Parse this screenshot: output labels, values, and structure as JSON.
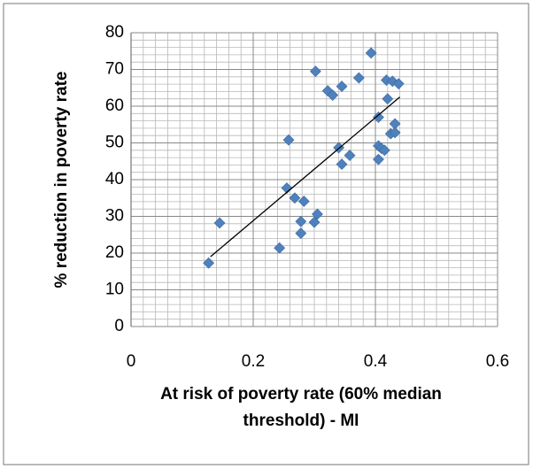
{
  "chart_data": {
    "type": "scatter",
    "xlabel": [
      "At risk of poverty rate (60% median",
      "threshold) - MI"
    ],
    "ylabel": "% reduction in poverty rate",
    "color": "#4f81bd",
    "x": [
      0.127,
      0.145,
      0.243,
      0.255,
      0.258,
      0.268,
      0.278,
      0.278,
      0.283,
      0.3,
      0.302,
      0.305,
      0.322,
      0.33,
      0.34,
      0.345,
      0.345,
      0.358,
      0.373,
      0.393,
      0.405,
      0.405,
      0.405,
      0.41,
      0.415,
      0.418,
      0.42,
      0.425,
      0.428,
      0.432,
      0.432,
      0.438
    ],
    "values": [
      17.3,
      28.2,
      21.4,
      37.7,
      50.8,
      35,
      28.6,
      25.4,
      34.1,
      28.4,
      69.5,
      30.6,
      64.2,
      63,
      48.7,
      44.2,
      65.4,
      46.6,
      67.7,
      74.5,
      57,
      49.2,
      45.5,
      48.5,
      48,
      67.1,
      62,
      52.5,
      66.8,
      55.2,
      52.8,
      66.1
    ],
    "trendline": {
      "x": [
        0.13,
        0.44
      ],
      "y": [
        19,
        62.5
      ],
      "color": "#000000"
    },
    "xlim": [
      0,
      0.6
    ],
    "ylim": [
      0,
      80
    ],
    "xticks": [
      0,
      0.2,
      0.4,
      0.6
    ],
    "yticks": [
      0,
      10,
      20,
      30,
      40,
      50,
      60,
      70,
      80
    ],
    "xminorticks": [
      0.02,
      0.04,
      0.06,
      0.08,
      0.1,
      0.12,
      0.14,
      0.16,
      0.18,
      0.22,
      0.24,
      0.26,
      0.28,
      0.3,
      0.32,
      0.34,
      0.36,
      0.38,
      0.42,
      0.44,
      0.46,
      0.48,
      0.5,
      0.52,
      0.54,
      0.56,
      0.58
    ],
    "yminorticks": [
      2,
      4,
      6,
      8,
      12,
      14,
      16,
      18,
      22,
      24,
      26,
      28,
      32,
      34,
      36,
      38,
      42,
      44,
      46,
      48,
      52,
      54,
      56,
      58,
      62,
      64,
      66,
      68,
      72,
      74,
      76,
      78
    ],
    "grid": true
  }
}
